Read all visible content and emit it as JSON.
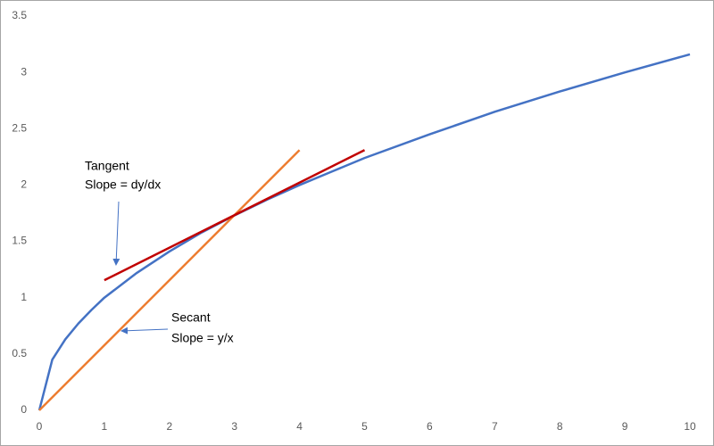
{
  "chart_data": {
    "type": "line",
    "series": [
      {
        "color": "#4472c4",
        "x": [
          0,
          0.2,
          0.4,
          0.6,
          0.8,
          1,
          1.5,
          2,
          2.5,
          3,
          3.5,
          4,
          4.5,
          5,
          6,
          7,
          8,
          9,
          10
        ],
        "values": [
          0,
          0.45,
          0.63,
          0.77,
          0.89,
          1,
          1.22,
          1.41,
          1.58,
          1.73,
          1.87,
          2,
          2.12,
          2.24,
          2.45,
          2.65,
          2.83,
          3,
          3.16
        ]
      },
      {
        "color": "#ed7d31",
        "x": [
          0,
          4
        ],
        "values": [
          0,
          2.31
        ]
      },
      {
        "color": "#c00000",
        "x": [
          1,
          5
        ],
        "values": [
          1.155,
          2.31
        ]
      }
    ],
    "xlim": [
      0,
      10
    ],
    "xticks": [
      0,
      1,
      2,
      3,
      4,
      5,
      6,
      7,
      8,
      9,
      10
    ],
    "ylim": [
      0,
      3.5
    ],
    "yticks": [
      0,
      0.5,
      1,
      1.5,
      2,
      2.5,
      3,
      3.5
    ],
    "grid": false,
    "annotations": [
      {
        "lines": [
          "Tangent",
          "Slope = dy/dx"
        ]
      },
      {
        "lines": [
          "Secant",
          "Slope = y/x"
        ]
      }
    ]
  }
}
